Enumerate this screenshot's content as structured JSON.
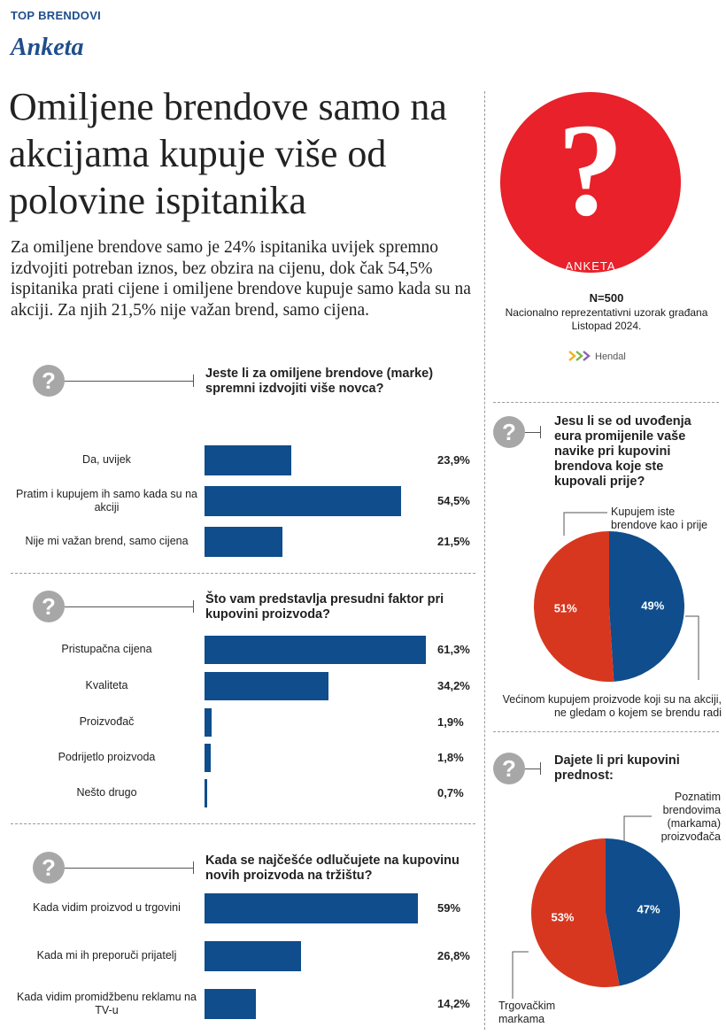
{
  "header": {
    "kicker": "TOP BRENDOVI",
    "section": "Anketa"
  },
  "headline": "Omiljene brendove samo na akcijama kupuje više od polovine ispitanika",
  "lead": "Za omiljene brendove samo je 24% ispitanika uvijek spremno izdvojiti potreban iznos, bez obzira na cijenu, dok čak 54,5% ispitanika prati cijene i omiljene brendove kupuje samo kada su na akciji. Za njih 21,5% nije važan brend, samo cijena.",
  "badge": {
    "icon": "question-mark-icon",
    "mark": "?",
    "label": "ANKETA",
    "color": "#e8212a"
  },
  "survey": {
    "n": "N=500",
    "sample": "Nacionalno reprezentativni uzorak građana",
    "date": "Listopad 2024."
  },
  "logo": {
    "icon": "hendal-logo-icon",
    "text": "Hendal"
  },
  "question_icon": "?",
  "colors": {
    "bar": "#0f4d8c",
    "pie_blue": "#0f4d8c",
    "pie_red": "#d7371f",
    "badge_red": "#e8212a"
  },
  "chart_data": [
    {
      "type": "bar",
      "title": "Jeste li za omiljene brendove (marke) spremni izdvojiti više novca?",
      "categories": [
        "Da, uvijek",
        "Pratim i kupujem ih samo kada su na akciji",
        "Nije mi važan brend, samo cijena"
      ],
      "values": [
        23.9,
        54.5,
        21.5
      ],
      "value_labels": [
        "23,9%",
        "54,5%",
        "21,5%"
      ],
      "orientation": "horizontal"
    },
    {
      "type": "bar",
      "title": "Što vam predstavlja presudni faktor pri kupovini proizvoda?",
      "categories": [
        "Pristupačna cijena",
        "Kvaliteta",
        "Proizvođač",
        "Podrijetlo proizvoda",
        "Nešto drugo"
      ],
      "values": [
        61.3,
        34.2,
        1.9,
        1.8,
        0.7
      ],
      "value_labels": [
        "61,3%",
        "34,2%",
        "1,9%",
        "1,8%",
        "0,7%"
      ],
      "orientation": "horizontal"
    },
    {
      "type": "bar",
      "title": "Kada se najčešće odlučujete na kupovinu novih proizvoda na tržištu?",
      "categories": [
        "Kada vidim proizvod u trgovini",
        "Kada mi ih preporuči prijatelj",
        "Kada vidim promidžbenu reklamu na TV-u"
      ],
      "values": [
        59,
        26.8,
        14.2
      ],
      "value_labels": [
        "59%",
        "26,8%",
        "14,2%"
      ],
      "orientation": "horizontal"
    },
    {
      "type": "pie",
      "title": "Jesu li se od uvođenja eura promijenile vaše navike pri kupovini brendova koje ste kupovali prije?",
      "categories": [
        "Kupujem iste brendove kao i prije",
        "Većinom kupujem proizvode koji su na akciji, ne gledam o kojem se brendu radi"
      ],
      "values": [
        49,
        51
      ],
      "value_labels": [
        "49%",
        "51%"
      ]
    },
    {
      "type": "pie",
      "title": "Dajete li pri kupovini prednost:",
      "categories": [
        "Poznatim brendovima (markama) proizvođača",
        "Trgovačkim markama"
      ],
      "values": [
        47,
        53
      ],
      "value_labels": [
        "47%",
        "53%"
      ]
    }
  ]
}
